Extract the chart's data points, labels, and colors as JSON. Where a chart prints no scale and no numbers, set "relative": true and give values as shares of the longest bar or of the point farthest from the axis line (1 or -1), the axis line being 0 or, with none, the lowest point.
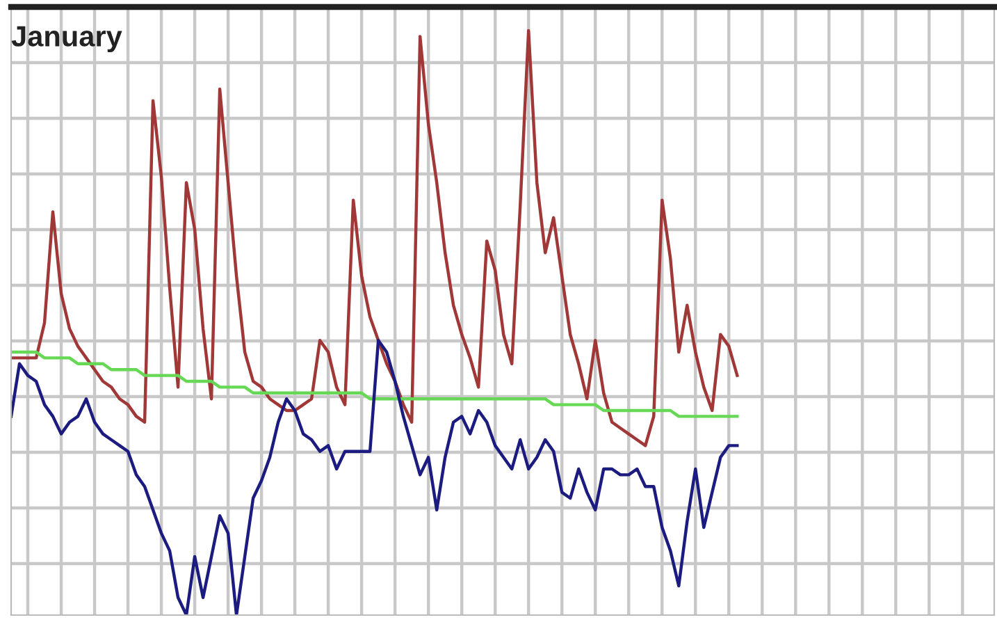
{
  "chart_data": {
    "type": "line",
    "title": "January",
    "relative": true,
    "grid": true,
    "legend": false,
    "tick_labels": false,
    "marker": "none",
    "line_style": "solid",
    "categories": [
      null,
      null,
      null,
      null,
      null,
      null,
      null,
      null,
      null,
      null,
      null,
      null,
      null,
      null,
      null,
      null,
      null,
      null,
      null,
      null,
      null,
      null,
      null,
      null,
      null,
      null,
      null,
      null,
      null,
      null,
      null,
      null,
      null,
      null,
      null,
      null,
      null,
      null,
      null,
      null,
      null,
      null,
      null,
      null,
      null,
      null,
      null,
      null,
      null,
      null,
      null,
      null,
      null,
      null,
      null,
      null,
      null,
      null,
      null,
      null,
      null,
      null,
      null,
      null,
      null,
      null,
      null,
      null,
      null,
      null,
      null,
      null,
      null,
      null,
      null,
      null,
      null,
      null,
      null,
      null,
      null,
      null,
      null,
      null,
      null,
      null,
      null,
      null,
      null,
      null,
      null,
      null,
      null,
      null,
      null,
      null,
      null,
      null,
      null,
      null,
      null,
      null,
      null,
      null,
      null,
      null,
      null,
      null,
      null,
      null,
      null,
      null,
      null,
      null,
      null,
      null,
      null,
      null
    ],
    "series": [
      {
        "color": "#a03838",
        "values": [
          0.44,
          0.44,
          0.44,
          0.44,
          0.5,
          0.69,
          0.55,
          0.49,
          0.46,
          0.44,
          0.42,
          0.4,
          0.39,
          0.37,
          0.36,
          0.34,
          0.33,
          0.88,
          0.75,
          0.56,
          0.39,
          0.74,
          0.66,
          0.49,
          0.37,
          0.9,
          0.74,
          0.58,
          0.45,
          0.4,
          0.39,
          0.37,
          0.36,
          0.35,
          0.35,
          0.36,
          0.37,
          0.47,
          0.45,
          0.39,
          0.36,
          0.71,
          0.58,
          0.51,
          0.47,
          0.43,
          0.4,
          0.36,
          0.33,
          0.99,
          0.84,
          0.74,
          0.62,
          0.53,
          0.48,
          0.44,
          0.39,
          0.64,
          0.59,
          0.48,
          0.43,
          0.7,
          1,
          0.74,
          0.62,
          0.68,
          0.58,
          0.48,
          0.43,
          0.37,
          0.47,
          0.38,
          0.33,
          0.32,
          0.31,
          0.3,
          0.29,
          0.34,
          0.71,
          0.61,
          0.45,
          0.53,
          0.45,
          0.39,
          0.35,
          0.48,
          0.46,
          0.41,
          null,
          null,
          null,
          null,
          null,
          null,
          null,
          null,
          null,
          null,
          null,
          null,
          null,
          null,
          null,
          null,
          null,
          null,
          null,
          null,
          null,
          null,
          null,
          null,
          null,
          null,
          null,
          null,
          null,
          null
        ]
      },
      {
        "color": "#66d855",
        "values": [
          0.45,
          0.45,
          0.45,
          0.45,
          0.44,
          0.44,
          0.44,
          0.44,
          0.43,
          0.43,
          0.43,
          0.43,
          0.42,
          0.42,
          0.42,
          0.42,
          0.41,
          0.41,
          0.41,
          0.41,
          0.41,
          0.4,
          0.4,
          0.4,
          0.4,
          0.39,
          0.39,
          0.39,
          0.39,
          0.38,
          0.38,
          0.38,
          0.38,
          0.38,
          0.38,
          0.38,
          0.38,
          0.38,
          0.38,
          0.38,
          0.38,
          0.38,
          0.38,
          0.37,
          0.37,
          0.37,
          0.37,
          0.37,
          0.37,
          0.37,
          0.37,
          0.37,
          0.37,
          0.37,
          0.37,
          0.37,
          0.37,
          0.37,
          0.37,
          0.37,
          0.37,
          0.37,
          0.37,
          0.37,
          0.37,
          0.36,
          0.36,
          0.36,
          0.36,
          0.36,
          0.36,
          0.35,
          0.35,
          0.35,
          0.35,
          0.35,
          0.35,
          0.35,
          0.35,
          0.35,
          0.34,
          0.34,
          0.34,
          0.34,
          0.34,
          0.34,
          0.34,
          0.34,
          null,
          null,
          null,
          null,
          null,
          null,
          null,
          null,
          null,
          null,
          null,
          null,
          null,
          null,
          null,
          null,
          null,
          null,
          null,
          null,
          null,
          null,
          null,
          null,
          null,
          null,
          null,
          null,
          null,
          null
        ]
      },
      {
        "color": "#1c1c80",
        "values": [
          0.34,
          0.43,
          0.41,
          0.4,
          0.36,
          0.34,
          0.31,
          0.33,
          0.34,
          0.37,
          0.33,
          0.31,
          0.3,
          0.29,
          0.28,
          0.24,
          0.22,
          0.18,
          0.14,
          0.11,
          0.03,
          0,
          0.1,
          0.03,
          0.1,
          0.17,
          0.14,
          0,
          0.1,
          0.2,
          0.23,
          0.27,
          0.33,
          0.37,
          0.35,
          0.31,
          0.3,
          0.28,
          0.29,
          0.25,
          0.28,
          0.28,
          0.28,
          0.28,
          0.47,
          0.45,
          0.4,
          0.34,
          0.29,
          0.24,
          0.27,
          0.18,
          0.27,
          0.33,
          0.34,
          0.31,
          0.35,
          0.33,
          0.29,
          0.27,
          0.25,
          0.3,
          0.25,
          0.27,
          0.3,
          0.28,
          0.21,
          0.2,
          0.25,
          0.21,
          0.18,
          0.25,
          0.25,
          0.24,
          0.24,
          0.25,
          0.22,
          0.22,
          0.15,
          0.11,
          0.05,
          0.16,
          0.25,
          0.15,
          0.21,
          0.27,
          0.29,
          0.29,
          null,
          null,
          null,
          null,
          null,
          null,
          null,
          null,
          null,
          null,
          null,
          null,
          null,
          null,
          null,
          null,
          null,
          null,
          null,
          null,
          null,
          null,
          null,
          null,
          null,
          null,
          null,
          null,
          null,
          null
        ]
      }
    ]
  }
}
